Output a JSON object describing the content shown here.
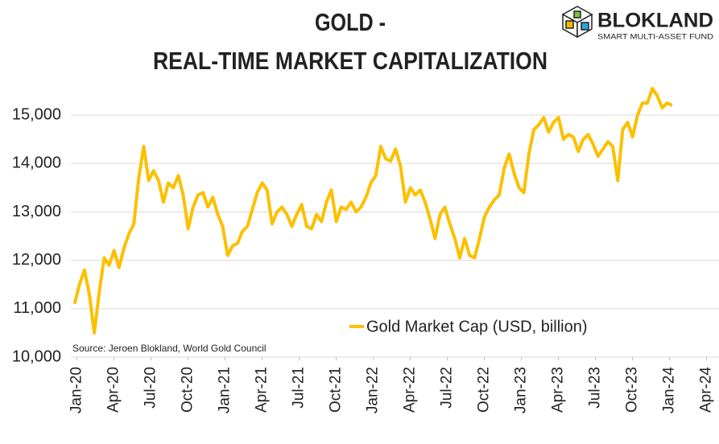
{
  "logo": {
    "name": "BLOKLAND",
    "tagline": "SMART MULTI-ASSET FUND"
  },
  "chart_data": {
    "type": "line",
    "title_lines": [
      "GOLD -",
      "REAL-TIME MARKET CAPITALIZATION"
    ],
    "source": "Source: Jeroen Blokland, World Gold Council",
    "x": [
      -0.2,
      0.2,
      0.6,
      1,
      1.4,
      1.8,
      2.2,
      2.6,
      3,
      3.4,
      3.8,
      4.2,
      4.6,
      5,
      5.4,
      5.8,
      6.2,
      6.6,
      7,
      7.4,
      7.8,
      8.2,
      8.6,
      9,
      9.4,
      9.8,
      10.2,
      10.6,
      11,
      11.4,
      11.8,
      12.2,
      12.6,
      13,
      13.4,
      13.8,
      14.2,
      14.6,
      15,
      15.4,
      15.8,
      16.2,
      16.6,
      17,
      17.4,
      17.8,
      18.2,
      18.6,
      19,
      19.4,
      19.8,
      20.2,
      20.6,
      21,
      21.4,
      21.8,
      22.2,
      22.6,
      23,
      23.4,
      23.8,
      24.2,
      24.6,
      25,
      25.4,
      25.8,
      26.2,
      26.6,
      27,
      27.4,
      27.8,
      28.2,
      28.6,
      29,
      29.4,
      29.8,
      30.2,
      30.6,
      31,
      31.4,
      31.8,
      32.2,
      32.6,
      33,
      33.4,
      33.8,
      34.2,
      34.6,
      35,
      35.4,
      35.8,
      36.2,
      36.6,
      37,
      37.4,
      37.8,
      38.2,
      38.6,
      39,
      39.4,
      39.8,
      40.2,
      40.6,
      41,
      41.4,
      41.8,
      42.2,
      42.6,
      43,
      43.4,
      43.8,
      44.2,
      44.6,
      45,
      45.4,
      45.8,
      46.2,
      46.6,
      47,
      47.4,
      47.8,
      48.2
    ],
    "series": [
      {
        "name": "Gold Market Cap (USD, billion)",
        "color": "#fcc000",
        "values": [
          11100,
          11500,
          11800,
          11300,
          10500,
          11350,
          12050,
          11900,
          12200,
          11850,
          12250,
          12550,
          12750,
          13700,
          14350,
          13650,
          13850,
          13650,
          13200,
          13600,
          13500,
          13750,
          13350,
          12650,
          13100,
          13350,
          13400,
          13100,
          13300,
          12950,
          12700,
          12100,
          12300,
          12350,
          12600,
          12700,
          13050,
          13400,
          13600,
          13450,
          12750,
          13000,
          13100,
          12950,
          12700,
          12950,
          13150,
          12700,
          12650,
          12950,
          12800,
          13200,
          13450,
          12800,
          13100,
          13050,
          13200,
          13000,
          13100,
          13300,
          13600,
          13750,
          14350,
          14100,
          14050,
          14300,
          13950,
          13200,
          13500,
          13350,
          13450,
          13200,
          12850,
          12450,
          12950,
          13100,
          12750,
          12450,
          12050,
          12450,
          12100,
          12050,
          12450,
          12900,
          13100,
          13250,
          13350,
          13900,
          14200,
          13800,
          13500,
          13400,
          14200,
          14700,
          14800,
          14950,
          14650,
          14850,
          14950,
          14500,
          14600,
          14550,
          14250,
          14500,
          14600,
          14400,
          14150,
          14300,
          14450,
          14350,
          13650,
          14700,
          14850,
          14550,
          15000,
          15250,
          15250,
          15550,
          15400,
          15150,
          15250,
          15200
        ]
      }
    ],
    "xlim": [
      -0.5,
      52
    ],
    "xticks": [
      {
        "value": 0,
        "label": "Jan-20"
      },
      {
        "value": 3,
        "label": "Apr-20"
      },
      {
        "value": 6,
        "label": "Jul-20"
      },
      {
        "value": 9,
        "label": "Oct-20"
      },
      {
        "value": 12,
        "label": "Jan-21"
      },
      {
        "value": 15,
        "label": "Apr-21"
      },
      {
        "value": 18,
        "label": "Jul-21"
      },
      {
        "value": 21,
        "label": "Oct-21"
      },
      {
        "value": 24,
        "label": "Jan-22"
      },
      {
        "value": 27,
        "label": "Apr-22"
      },
      {
        "value": 30,
        "label": "Jul-22"
      },
      {
        "value": 33,
        "label": "Oct-22"
      },
      {
        "value": 36,
        "label": "Jan-23"
      },
      {
        "value": 39,
        "label": "Apr-23"
      },
      {
        "value": 42,
        "label": "Jul-23"
      },
      {
        "value": 45,
        "label": "Oct-23"
      },
      {
        "value": 48,
        "label": "Jan-24"
      },
      {
        "value": 51,
        "label": "Apr-24"
      }
    ],
    "ylim": [
      10000,
      15700
    ],
    "yticks": [
      {
        "value": 10000,
        "label": "10,000"
      },
      {
        "value": 11000,
        "label": "11,000"
      },
      {
        "value": 12000,
        "label": "12,000"
      },
      {
        "value": 13000,
        "label": "13,000"
      },
      {
        "value": 14000,
        "label": "14,000"
      },
      {
        "value": 15000,
        "label": "15,000"
      }
    ],
    "grid": true
  }
}
